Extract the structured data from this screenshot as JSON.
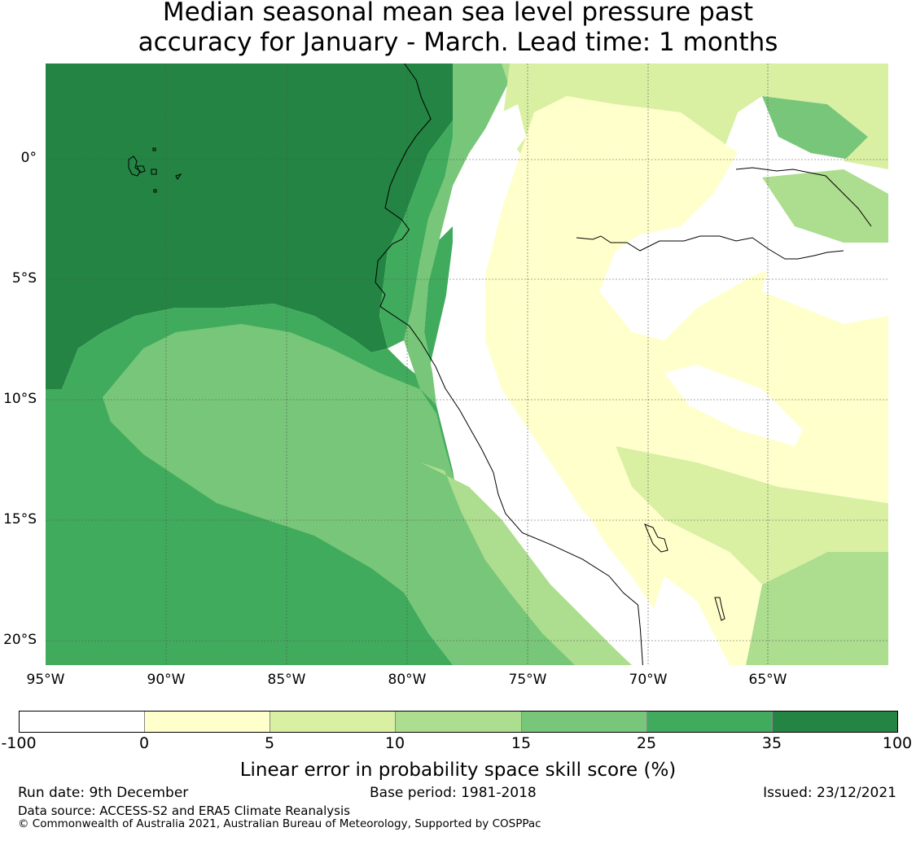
{
  "title": {
    "line1": "Median seasonal mean sea level pressure past",
    "line2": "accuracy for January - March. Lead time: 1 months"
  },
  "map": {
    "lat_labels": [
      "0°",
      "5°S",
      "10°S",
      "15°S",
      "20°S"
    ],
    "lon_labels": [
      "95°W",
      "90°W",
      "85°W",
      "80°W",
      "75°W",
      "70°W",
      "65°W"
    ],
    "lat_range": [
      -21,
      4
    ],
    "lon_range": [
      -95,
      -60
    ],
    "coastline_coords": [
      [
        -80.1,
        4
      ],
      [
        -79.6,
        3.3
      ],
      [
        -79.4,
        2.6
      ],
      [
        -79.0,
        1.7
      ],
      [
        -79.6,
        1.0
      ],
      [
        -80.0,
        0.4
      ],
      [
        -80.4,
        -0.4
      ],
      [
        -80.7,
        -1.1
      ],
      [
        -80.9,
        -2.0
      ],
      [
        -80.2,
        -2.5
      ],
      [
        -79.9,
        -2.9
      ],
      [
        -80.2,
        -3.3
      ],
      [
        -80.6,
        -3.5
      ],
      [
        -81.2,
        -4.2
      ],
      [
        -81.3,
        -5.1
      ],
      [
        -80.9,
        -5.6
      ],
      [
        -81.1,
        -6.1
      ],
      [
        -79.9,
        -6.9
      ],
      [
        -79.4,
        -7.6
      ],
      [
        -78.8,
        -8.6
      ],
      [
        -78.4,
        -9.5
      ],
      [
        -77.8,
        -10.4
      ],
      [
        -77.3,
        -11.3
      ],
      [
        -76.9,
        -12.0
      ],
      [
        -76.4,
        -13.0
      ],
      [
        -76.2,
        -13.9
      ],
      [
        -75.9,
        -14.7
      ],
      [
        -75.2,
        -15.5
      ],
      [
        -74.0,
        -16.0
      ],
      [
        -72.7,
        -16.6
      ],
      [
        -71.6,
        -17.3
      ],
      [
        -71.0,
        -18.0
      ],
      [
        -70.4,
        -18.5
      ],
      [
        -70.3,
        -19.5
      ],
      [
        -70.2,
        -21
      ]
    ],
    "colors": {
      "c_neg": "#ffffff",
      "c0": "#ffffcc",
      "c5": "#d9f0a3",
      "c10": "#addd8e",
      "c15": "#78c679",
      "c25": "#41ab5d",
      "c35": "#238443"
    }
  },
  "colorbar": {
    "ticks": [
      "-100",
      "0",
      "5",
      "10",
      "15",
      "25",
      "35",
      "100"
    ],
    "label": "Linear error in probability space skill score (%)",
    "colors": [
      "#ffffff",
      "#ffffcc",
      "#d9f0a3",
      "#addd8e",
      "#78c679",
      "#41ab5d",
      "#238443"
    ]
  },
  "footer": {
    "run_date": "Run date: 9th December",
    "base_period": "Base period: 1981-2018",
    "issued": "Issued: 23/12/2021",
    "source": "Data source: ACCESS-S2 and ERA5 Climate Reanalysis",
    "copyright": "© Commonwealth of Australia 2021, Australian Bureau of Meteorology, Supported by COSPPac"
  }
}
